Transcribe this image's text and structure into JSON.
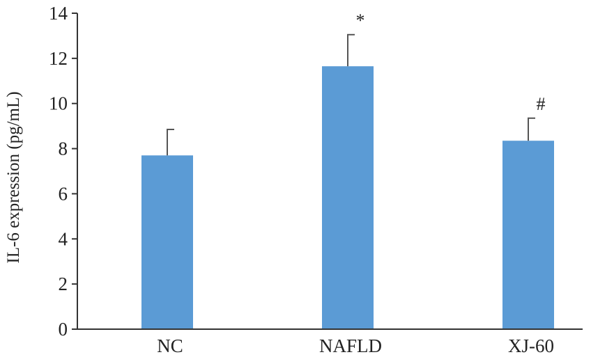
{
  "chart_data": {
    "type": "bar",
    "title": "",
    "xlabel": "",
    "ylabel": "IL-6 expression (pg/mL)",
    "categories": [
      "NC",
      "NAFLD",
      "XJ-60"
    ],
    "values": [
      7.7,
      11.65,
      8.35
    ],
    "error": [
      1.15,
      1.4,
      1.0
    ],
    "annotations": [
      "",
      "*",
      "#"
    ],
    "ylim": [
      0,
      14
    ],
    "yticks": [
      0,
      2,
      4,
      6,
      8,
      10,
      12,
      14
    ],
    "grid": false,
    "legend": "none",
    "bar_color": "#5b9bd5",
    "error_color": "#555555"
  }
}
